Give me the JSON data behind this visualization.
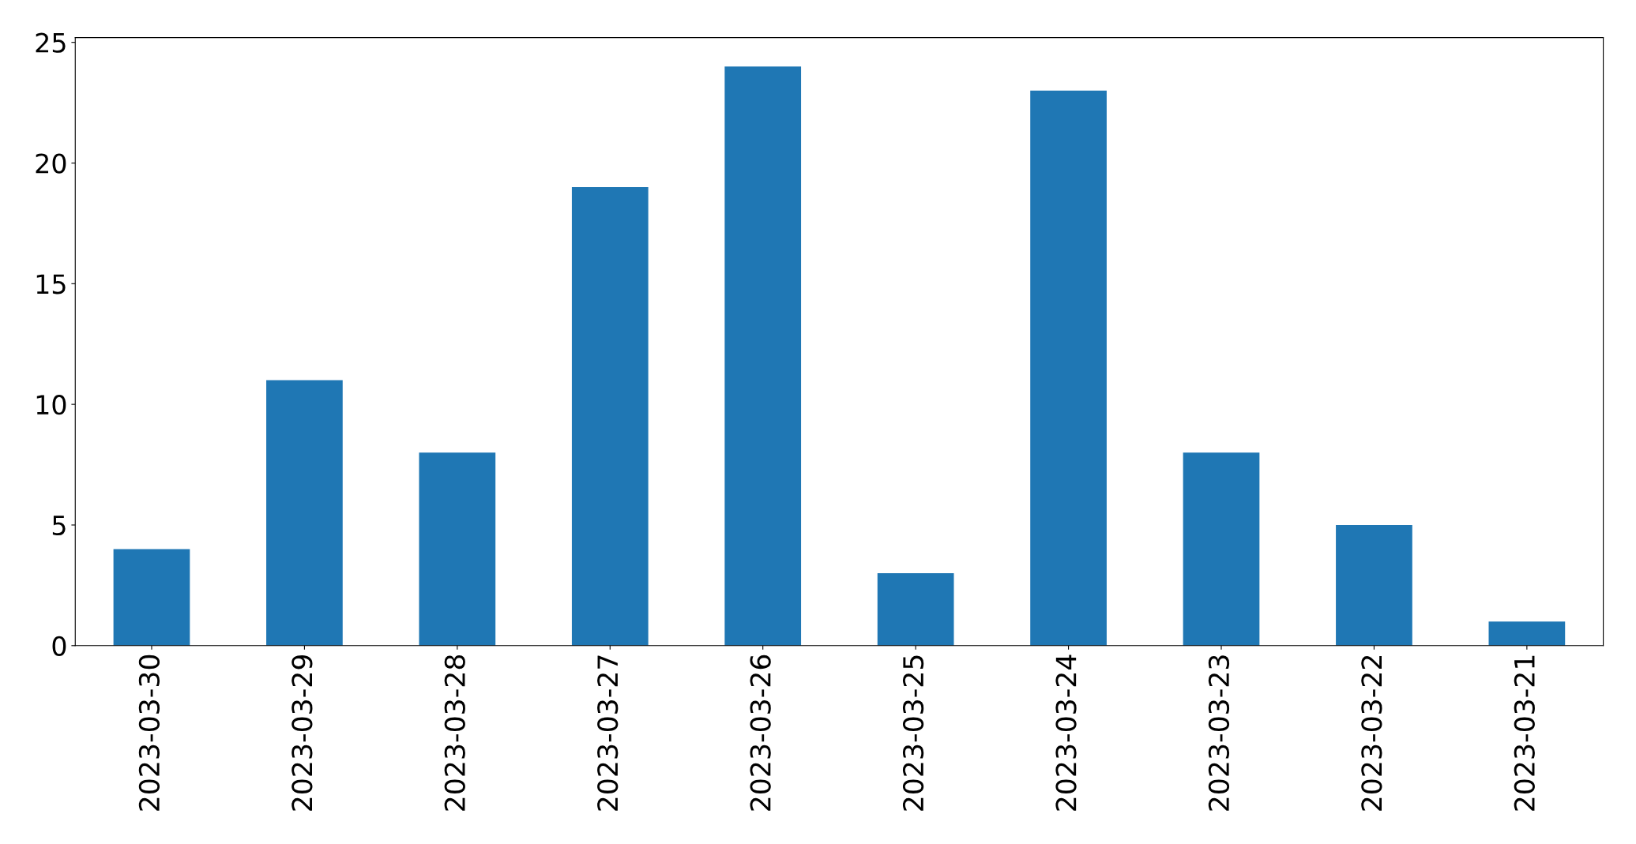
{
  "chart_data": {
    "type": "bar",
    "categories": [
      "2023-03-30",
      "2023-03-29",
      "2023-03-28",
      "2023-03-27",
      "2023-03-26",
      "2023-03-25",
      "2023-03-24",
      "2023-03-23",
      "2023-03-22",
      "2023-03-21"
    ],
    "values": [
      4,
      11,
      8,
      19,
      24,
      3,
      23,
      8,
      5,
      1
    ],
    "color": "#1f77b4",
    "ylim": [
      0,
      25.2
    ],
    "yticks": [
      0,
      5,
      10,
      15,
      20,
      25
    ],
    "grid": false
  }
}
